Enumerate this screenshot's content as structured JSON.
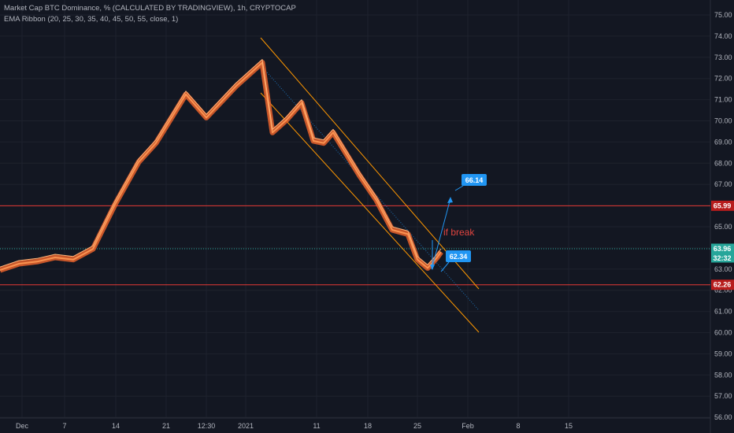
{
  "header": {
    "line1": "Market Cap BTC Dominance, % (CALCULATED BY TRADINGVIEW), 1h, CRYPTOCAP",
    "line2": "EMA Ribbon (20, 25, 30, 35, 40, 45, 50, 55, close, 1)"
  },
  "colors": {
    "background": "#131722",
    "grid": "#1e222d",
    "price": "#ffb47a",
    "ribbon": "#e8612c",
    "channel": "#ff9800",
    "midline": "#2196f3",
    "resistance": "#e53935",
    "current": "#26a69a",
    "arrow": "#2196f3"
  },
  "annotations": {
    "note": "if break",
    "target_up": "66.14",
    "target_down": "62.34"
  },
  "price_badges": {
    "resistance": "65.99",
    "current": "63.96",
    "countdown": "32:32",
    "support": "62.26"
  },
  "chart_data": {
    "type": "line",
    "title": "Market Cap BTC Dominance, % (CALCULATED BY TRADINGVIEW), 1h, CRYPTOCAP",
    "y_ticks": [
      "56.00",
      "57.00",
      "58.00",
      "59.00",
      "60.00",
      "61.00",
      "62.00",
      "63.00",
      "64.00",
      "65.00",
      "66.00",
      "67.00",
      "68.00",
      "69.00",
      "70.00",
      "71.00",
      "72.00",
      "73.00",
      "74.00",
      "75.00"
    ],
    "x_ticks": [
      "Dec",
      "7",
      "14",
      "21",
      "12:30",
      "2021",
      "11",
      "18",
      "25",
      "Feb",
      "8",
      "15"
    ],
    "ylim": [
      55.2,
      75.6
    ],
    "x": [
      "Nov 30",
      "Dec 3",
      "Dec 6",
      "Dec 9",
      "Dec 12",
      "Dec 15",
      "Dec 18",
      "Dec 21",
      "Dec 23",
      "Dec 26",
      "Dec 28",
      "Dec 30",
      "Jan 1",
      "Jan 3",
      "Jan 5",
      "Jan 7",
      "Jan 9",
      "Jan 11",
      "Jan 13",
      "Jan 15",
      "Jan 17",
      "Jan 19",
      "Jan 21",
      "Jan 23",
      "Jan 25",
      "Jan 27",
      "Jan 28"
    ],
    "series": [
      {
        "values": [
          63.1,
          63.4,
          63.5,
          63.7,
          63.6,
          64.1,
          66.2,
          68.2,
          69.1,
          71.4,
          70.3,
          71.8,
          72.9,
          69.6,
          70.2,
          71.0,
          69.2,
          69.1,
          69.6,
          67.6,
          66.4,
          65.0,
          64.8,
          63.6,
          63.2,
          63.7,
          63.96
        ]
      }
    ],
    "levels": [
      {
        "value": 65.99,
        "kind": "resistance"
      },
      {
        "value": 63.96,
        "kind": "current"
      },
      {
        "value": 62.26,
        "kind": "support"
      }
    ],
    "targets": [
      66.14,
      62.34
    ]
  }
}
